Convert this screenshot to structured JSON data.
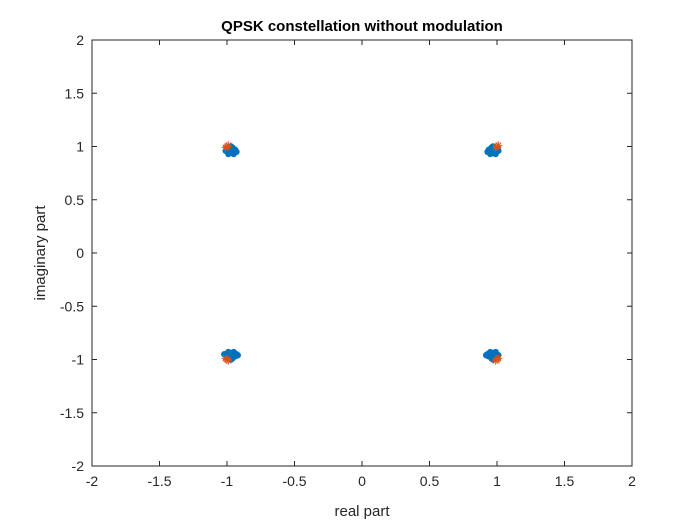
{
  "chart_data": {
    "type": "scatter",
    "title": "QPSK constellation without modulation",
    "xlabel": "real part",
    "ylabel": "imaginary part",
    "xlim": [
      -2,
      2
    ],
    "ylim": [
      -2,
      2
    ],
    "xticks": [
      -2,
      -1.5,
      -1,
      -0.5,
      0,
      0.5,
      1,
      1.5,
      2
    ],
    "xtick_labels": [
      "-2",
      "-1.5",
      "-1",
      "-0.5",
      "0",
      "0.5",
      "1",
      "1.5",
      "2"
    ],
    "yticks": [
      -2,
      -1.5,
      -1,
      -0.5,
      0,
      0.5,
      1,
      1.5,
      2
    ],
    "ytick_labels": [
      "-2",
      "-1.5",
      "-1",
      "-0.5",
      "0",
      "0.5",
      "1",
      "1.5",
      "2"
    ],
    "grid": false,
    "box": true,
    "series": [
      {
        "marker": "dot",
        "color": "#0072BD",
        "points": [
          [
            -0.97,
            0.97
          ],
          [
            -0.95,
            0.95
          ],
          [
            -0.99,
            0.96
          ],
          [
            -0.96,
            0.99
          ],
          [
            -0.98,
            0.94
          ],
          [
            -0.94,
            0.97
          ],
          [
            -1.0,
            0.98
          ],
          [
            -0.97,
            1.0
          ],
          [
            -0.99,
            0.93
          ],
          [
            -0.93,
            0.95
          ],
          [
            -0.96,
            0.96
          ],
          [
            -0.98,
            0.98
          ],
          [
            -0.95,
            0.93
          ],
          [
            -1.01,
            0.96
          ],
          [
            -0.97,
            0.94
          ],
          [
            0.97,
            0.97
          ],
          [
            0.95,
            0.95
          ],
          [
            0.99,
            0.96
          ],
          [
            0.96,
            0.99
          ],
          [
            0.98,
            0.94
          ],
          [
            0.94,
            0.97
          ],
          [
            1.0,
            0.98
          ],
          [
            0.97,
            1.0
          ],
          [
            0.99,
            0.93
          ],
          [
            0.93,
            0.95
          ],
          [
            0.96,
            0.96
          ],
          [
            0.98,
            0.98
          ],
          [
            0.95,
            0.93
          ],
          [
            1.01,
            0.96
          ],
          [
            0.97,
            0.94
          ],
          [
            -0.97,
            -0.97
          ],
          [
            -0.95,
            -0.95
          ],
          [
            -0.99,
            -0.96
          ],
          [
            -0.96,
            -0.99
          ],
          [
            -0.98,
            -0.94
          ],
          [
            -0.94,
            -0.97
          ],
          [
            -1.0,
            -0.98
          ],
          [
            -0.97,
            -1.0
          ],
          [
            -0.99,
            -0.93
          ],
          [
            -0.93,
            -0.95
          ],
          [
            -0.96,
            -0.96
          ],
          [
            -0.98,
            -0.98
          ],
          [
            -0.95,
            -0.93
          ],
          [
            -1.01,
            -0.96
          ],
          [
            -0.97,
            -0.94
          ],
          [
            -0.92,
            -0.96
          ],
          [
            -1.02,
            -0.95
          ],
          [
            0.97,
            -0.97
          ],
          [
            0.95,
            -0.95
          ],
          [
            0.99,
            -0.96
          ],
          [
            0.96,
            -0.99
          ],
          [
            0.98,
            -0.94
          ],
          [
            0.94,
            -0.97
          ],
          [
            1.0,
            -0.98
          ],
          [
            0.97,
            -1.0
          ],
          [
            0.99,
            -0.93
          ],
          [
            0.93,
            -0.95
          ],
          [
            0.96,
            -0.96
          ],
          [
            0.98,
            -0.98
          ],
          [
            0.95,
            -0.93
          ],
          [
            1.01,
            -0.96
          ],
          [
            0.97,
            -0.94
          ],
          [
            0.92,
            -0.96
          ]
        ]
      },
      {
        "marker": "star",
        "color": "#D95319",
        "points": [
          [
            -1.0,
            1.0
          ],
          [
            -0.99,
            1.01
          ],
          [
            -1.01,
            0.99
          ],
          [
            1.0,
            1.0
          ],
          [
            1.01,
            1.01
          ],
          [
            0.99,
            0.99
          ],
          [
            -1.0,
            -1.0
          ],
          [
            -0.99,
            -1.01
          ],
          [
            -1.01,
            -0.99
          ],
          [
            1.0,
            -1.0
          ],
          [
            1.01,
            -0.99
          ],
          [
            0.99,
            -1.01
          ]
        ]
      }
    ]
  }
}
